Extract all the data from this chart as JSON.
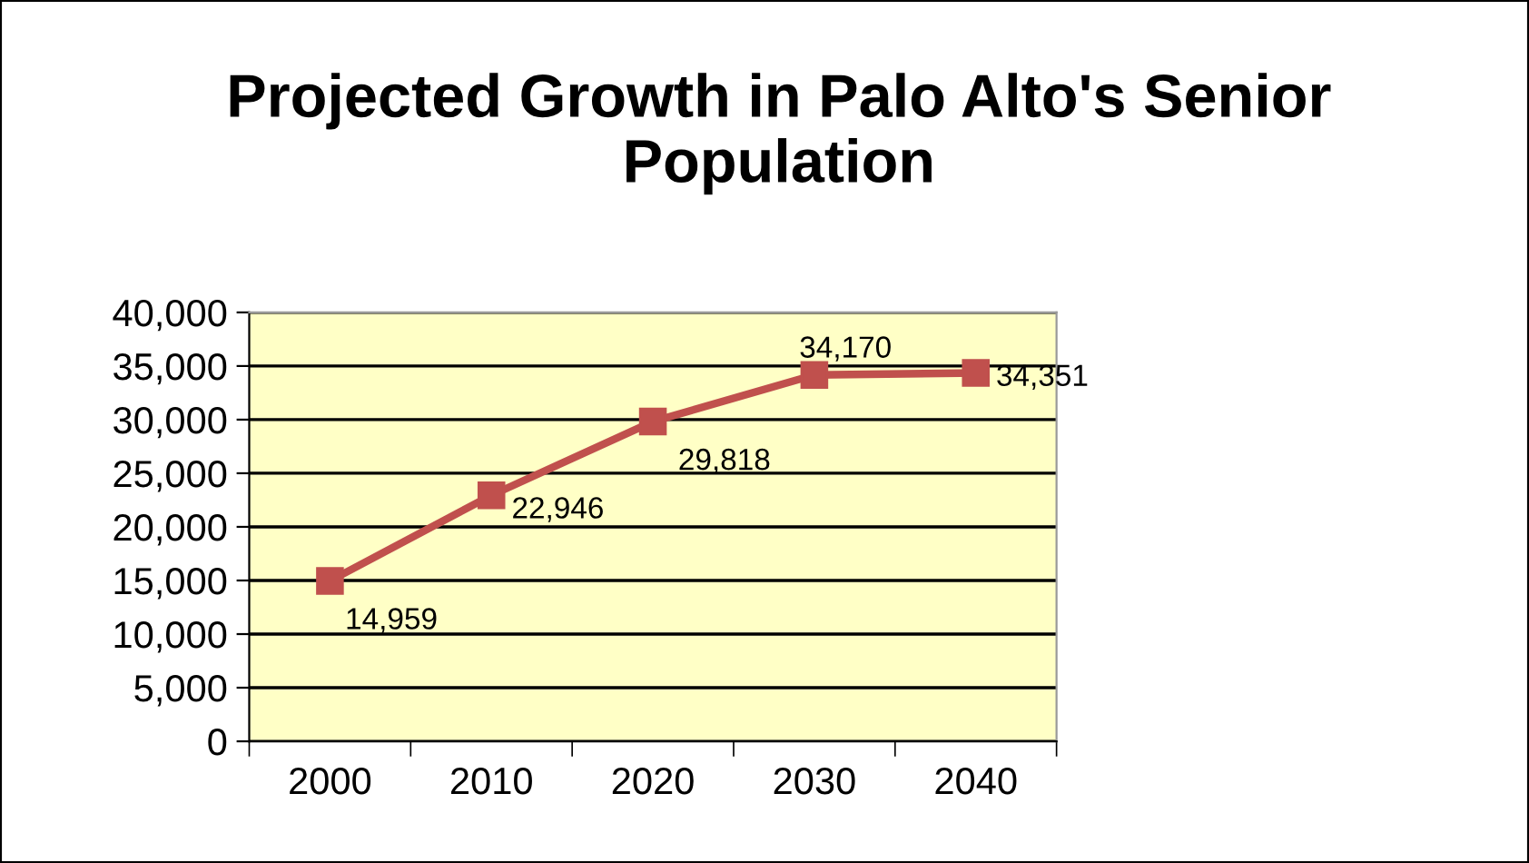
{
  "chart_data": {
    "type": "line",
    "title": "Projected Growth in Palo Alto's Senior Population",
    "categories": [
      "2000",
      "2010",
      "2020",
      "2030",
      "2040"
    ],
    "series": [
      {
        "color": "#c0504d",
        "values": [
          14959,
          22946,
          29818,
          34170,
          34351
        ]
      }
    ],
    "ylim": [
      0,
      40000
    ],
    "yticks": [
      {
        "value": 0,
        "label": "0"
      },
      {
        "value": 5000,
        "label": "5,000"
      },
      {
        "value": 10000,
        "label": "10,000"
      },
      {
        "value": 15000,
        "label": "15,000"
      },
      {
        "value": 20000,
        "label": "20,000"
      },
      {
        "value": 25000,
        "label": "25,000"
      },
      {
        "value": 30000,
        "label": "30,000"
      },
      {
        "value": 35000,
        "label": "35,000"
      },
      {
        "value": 40000,
        "label": "40,000"
      }
    ],
    "value_labels": [
      "14,959",
      "22,946",
      "29,818",
      "34,170",
      "34,351"
    ],
    "grid": "y",
    "marker": "square",
    "line_style": "solid"
  }
}
